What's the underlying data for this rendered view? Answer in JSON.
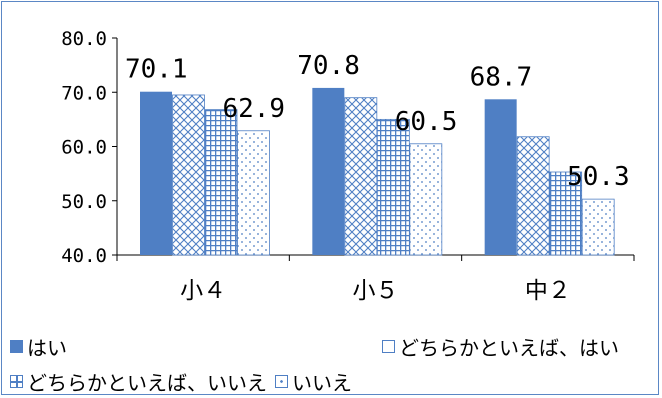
{
  "chart_data": {
    "type": "bar",
    "categories": [
      "小４",
      "小５",
      "中２"
    ],
    "ylim": [
      40,
      80
    ],
    "yticks": [
      "40.0",
      "50.0",
      "60.0",
      "70.0",
      "80.0"
    ],
    "ytick_values": [
      40,
      50,
      60,
      70,
      80
    ],
    "grid": false,
    "legend_position": "bottom",
    "series": [
      {
        "name": "はい",
        "values": [
          70.1,
          70.8,
          68.7
        ],
        "color": "#4f7fc4",
        "pattern": "solid"
      },
      {
        "name": "どちらかといえば、はい",
        "values": [
          69.5,
          69.0,
          61.8
        ],
        "color": "#4f7fc4",
        "pattern": "crosshatch"
      },
      {
        "name": "どちらかといえば、いいえ",
        "values": [
          66.8,
          65.0,
          55.3
        ],
        "color": "#4f7fc4",
        "pattern": "grid"
      },
      {
        "name": "いいえ",
        "values": [
          62.9,
          60.5,
          50.3
        ],
        "color": "#4f7fc4",
        "pattern": "dots"
      }
    ],
    "data_labels": [
      {
        "text": "70.1",
        "category": 0,
        "series": 0
      },
      {
        "text": "62.9",
        "category": 0,
        "series": 3
      },
      {
        "text": "70.8",
        "category": 1,
        "series": 0
      },
      {
        "text": "60.5",
        "category": 1,
        "series": 3
      },
      {
        "text": "68.7",
        "category": 2,
        "series": 0
      },
      {
        "text": "50.3",
        "category": 2,
        "series": 3
      }
    ]
  },
  "legend_items": [
    "はい",
    "どちらかといえば、はい",
    "どちらかといえば、いいえ",
    "いいえ"
  ]
}
